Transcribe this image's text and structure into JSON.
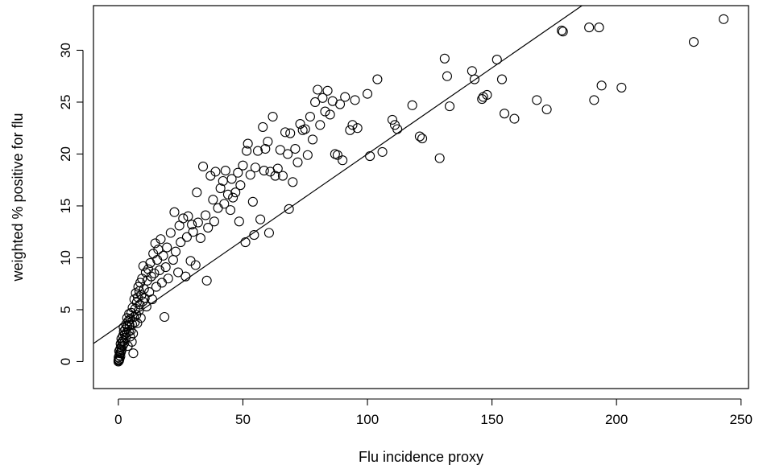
{
  "chart_data": {
    "type": "scatter",
    "xlabel": "Flu incidence proxy",
    "ylabel": "weighted % positive for flu",
    "xlim": [
      -10,
      253
    ],
    "ylim": [
      -2.6,
      34.3
    ],
    "xticks": [
      0,
      50,
      100,
      150,
      200,
      250
    ],
    "yticks": [
      0,
      5,
      10,
      15,
      20,
      25,
      30
    ],
    "grid": false,
    "legend": "none",
    "marker": "open-circle",
    "colors": {
      "points": "#000000",
      "line": "#000000",
      "frame": "#000000",
      "background": "#ffffff"
    },
    "fit_line": {
      "intercept": 3.4,
      "slope": 0.166
    },
    "points": [
      [
        0,
        0
      ],
      [
        0,
        0.1
      ],
      [
        0.2,
        0.2
      ],
      [
        0.3,
        0.1
      ],
      [
        0.1,
        0.4
      ],
      [
        0.5,
        0.3
      ],
      [
        0.4,
        0.6
      ],
      [
        0.6,
        0.8
      ],
      [
        0.8,
        0.5
      ],
      [
        0.3,
        1.0
      ],
      [
        0.7,
        1.2
      ],
      [
        1.0,
        0.9
      ],
      [
        1.1,
        1.4
      ],
      [
        0.9,
        1.7
      ],
      [
        1.3,
        1.1
      ],
      [
        1.5,
        1.9
      ],
      [
        1.2,
        2.2
      ],
      [
        1.7,
        1.5
      ],
      [
        1.9,
        2.5
      ],
      [
        2.0,
        2.0
      ],
      [
        2.2,
        2.9
      ],
      [
        2.4,
        1.8
      ],
      [
        2.1,
        3.3
      ],
      [
        2.6,
        2.6
      ],
      [
        2.8,
        3.1
      ],
      [
        3.0,
        2.3
      ],
      [
        3.1,
        3.6
      ],
      [
        3.3,
        2.8
      ],
      [
        3.5,
        4.2
      ],
      [
        3.6,
        3.4
      ],
      [
        3.8,
        1.5
      ],
      [
        4.0,
        3.9
      ],
      [
        4.2,
        2.9
      ],
      [
        4.3,
        4.6
      ],
      [
        4.5,
        3.5
      ],
      [
        4.7,
        2.4
      ],
      [
        4.8,
        4.1
      ],
      [
        5.0,
        3.0
      ],
      [
        5.2,
        4.7
      ],
      [
        5.4,
        1.9
      ],
      [
        5.5,
        3.6
      ],
      [
        5.7,
        5.2
      ],
      [
        5.9,
        2.7
      ],
      [
        6.0,
        0.8
      ],
      [
        6.2,
        4.3
      ],
      [
        6.4,
        6.0
      ],
      [
        6.6,
        3.8
      ],
      [
        6.8,
        5.1
      ],
      [
        7.0,
        6.6
      ],
      [
        7.2,
        4.5
      ],
      [
        7.4,
        5.7
      ],
      [
        7.6,
        3.7
      ],
      [
        7.8,
        6.2
      ],
      [
        8.0,
        7.2
      ],
      [
        8.2,
        4.9
      ],
      [
        8.4,
        6.8
      ],
      [
        8.6,
        5.5
      ],
      [
        8.8,
        7.6
      ],
      [
        9.0,
        4.2
      ],
      [
        9.2,
        6.4
      ],
      [
        9.5,
        8.0
      ],
      [
        9.8,
        5.8
      ],
      [
        10.0,
        9.2
      ],
      [
        10.3,
        7.0
      ],
      [
        10.6,
        6.1
      ],
      [
        11.0,
        8.6
      ],
      [
        11.3,
        5.3
      ],
      [
        11.6,
        7.8
      ],
      [
        12.0,
        8.9
      ],
      [
        12.4,
        6.7
      ],
      [
        12.8,
        9.5
      ],
      [
        13.2,
        8.2
      ],
      [
        13.6,
        6.0
      ],
      [
        14.0,
        10.4
      ],
      [
        14.4,
        8.5
      ],
      [
        14.8,
        11.4
      ],
      [
        15.2,
        7.2
      ],
      [
        15.6,
        9.8
      ],
      [
        16.0,
        10.8
      ],
      [
        16.5,
        8.8
      ],
      [
        17.0,
        11.8
      ],
      [
        17.5,
        7.6
      ],
      [
        18.0,
        10.2
      ],
      [
        18.5,
        4.3
      ],
      [
        19.0,
        9.1
      ],
      [
        19.5,
        11.0
      ],
      [
        20.0,
        8.0
      ],
      [
        21.0,
        12.4
      ],
      [
        22.0,
        9.8
      ],
      [
        22.5,
        14.4
      ],
      [
        23.0,
        10.6
      ],
      [
        24.0,
        8.6
      ],
      [
        24.5,
        13.1
      ],
      [
        25.0,
        11.5
      ],
      [
        26.0,
        13.8
      ],
      [
        27.0,
        8.2
      ],
      [
        27.5,
        12.0
      ],
      [
        28.0,
        14.0
      ],
      [
        29.0,
        9.7
      ],
      [
        29.5,
        13.2
      ],
      [
        30.0,
        12.5
      ],
      [
        31.0,
        9.3
      ],
      [
        31.5,
        16.3
      ],
      [
        32.0,
        13.4
      ],
      [
        33.0,
        11.9
      ],
      [
        34.0,
        18.8
      ],
      [
        35.0,
        14.1
      ],
      [
        35.5,
        7.8
      ],
      [
        36.0,
        12.9
      ],
      [
        37.0,
        17.9
      ],
      [
        38.0,
        15.6
      ],
      [
        38.5,
        13.5
      ],
      [
        39.0,
        18.3
      ],
      [
        40.0,
        14.8
      ],
      [
        41.0,
        16.7
      ],
      [
        42.0,
        17.4
      ],
      [
        42.5,
        15.2
      ],
      [
        43.0,
        18.4
      ],
      [
        44.0,
        16.1
      ],
      [
        45.0,
        14.6
      ],
      [
        45.5,
        17.6
      ],
      [
        46.0,
        15.8
      ],
      [
        47.0,
        16.3
      ],
      [
        48.0,
        18.2
      ],
      [
        48.5,
        13.5
      ],
      [
        49.0,
        17.0
      ],
      [
        50.0,
        18.9
      ],
      [
        51.0,
        11.5
      ],
      [
        51.5,
        20.3
      ],
      [
        52.0,
        21.0
      ],
      [
        53.0,
        18.0
      ],
      [
        54.0,
        15.4
      ],
      [
        54.5,
        12.2
      ],
      [
        55.0,
        18.7
      ],
      [
        56.0,
        20.3
      ],
      [
        57.0,
        13.7
      ],
      [
        58.0,
        22.6
      ],
      [
        58.5,
        18.4
      ],
      [
        59.0,
        20.5
      ],
      [
        60.0,
        21.2
      ],
      [
        60.5,
        12.4
      ],
      [
        61.0,
        18.3
      ],
      [
        62.0,
        23.6
      ],
      [
        63.0,
        17.9
      ],
      [
        64.0,
        18.6
      ],
      [
        65.0,
        20.4
      ],
      [
        66.0,
        17.9
      ],
      [
        67.0,
        22.1
      ],
      [
        68.0,
        20.0
      ],
      [
        68.5,
        14.7
      ],
      [
        69.0,
        22.0
      ],
      [
        70.0,
        17.3
      ],
      [
        71.0,
        20.5
      ],
      [
        72.0,
        19.2
      ],
      [
        73.0,
        22.9
      ],
      [
        74.0,
        22.3
      ],
      [
        75.0,
        22.4
      ],
      [
        76.0,
        19.9
      ],
      [
        77.0,
        23.6
      ],
      [
        78.0,
        21.4
      ],
      [
        79.0,
        25.0
      ],
      [
        80.0,
        26.2
      ],
      [
        81.0,
        22.8
      ],
      [
        82.0,
        25.4
      ],
      [
        83.0,
        24.1
      ],
      [
        84.0,
        26.1
      ],
      [
        85.0,
        23.8
      ],
      [
        86.0,
        25.1
      ],
      [
        87.0,
        20.0
      ],
      [
        88.0,
        19.9
      ],
      [
        89.0,
        24.8
      ],
      [
        90.0,
        19.4
      ],
      [
        91.0,
        25.5
      ],
      [
        93.0,
        22.3
      ],
      [
        94.0,
        22.8
      ],
      [
        95.0,
        25.2
      ],
      [
        96.0,
        22.5
      ],
      [
        100.0,
        25.8
      ],
      [
        101.0,
        19.8
      ],
      [
        104.0,
        27.2
      ],
      [
        106.0,
        20.2
      ],
      [
        110.0,
        23.3
      ],
      [
        111.0,
        22.8
      ],
      [
        112.0,
        22.4
      ],
      [
        118.0,
        24.7
      ],
      [
        121.0,
        21.7
      ],
      [
        122.0,
        21.5
      ],
      [
        129.0,
        19.6
      ],
      [
        131.0,
        29.2
      ],
      [
        132.0,
        27.5
      ],
      [
        133.0,
        24.6
      ],
      [
        142.0,
        28.0
      ],
      [
        143.0,
        27.2
      ],
      [
        146.0,
        25.3
      ],
      [
        146.5,
        25.5
      ],
      [
        148.0,
        25.7
      ],
      [
        152.0,
        29.1
      ],
      [
        154.0,
        27.2
      ],
      [
        155.0,
        23.9
      ],
      [
        159.0,
        23.4
      ],
      [
        168.0,
        25.2
      ],
      [
        172.0,
        24.3
      ],
      [
        178.0,
        31.9
      ],
      [
        178.5,
        31.8
      ],
      [
        189.0,
        32.2
      ],
      [
        191.0,
        25.2
      ],
      [
        193.0,
        32.2
      ],
      [
        194.0,
        26.6
      ],
      [
        202.0,
        26.4
      ],
      [
        231.0,
        30.8
      ],
      [
        243.0,
        33.0
      ]
    ]
  }
}
